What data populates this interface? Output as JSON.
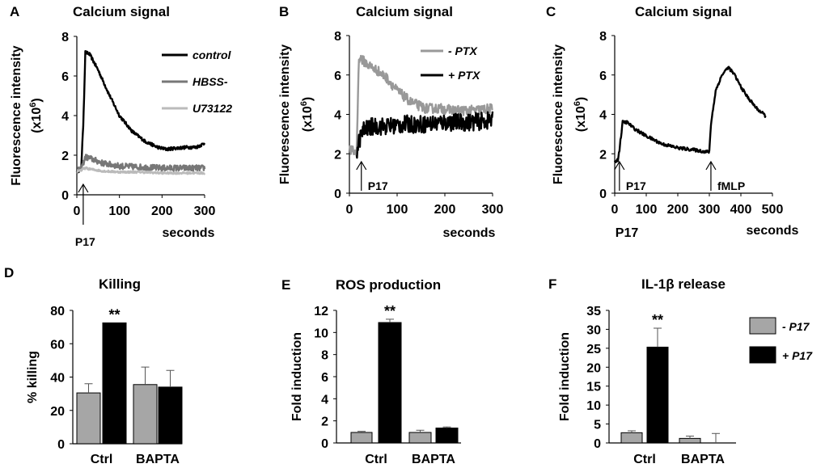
{
  "chart_data": [
    {
      "id": "A",
      "panel_label": "A",
      "type": "line",
      "title": "Calcium signal",
      "ylabel": "Fluorescence intensity",
      "ylabel2": "(x10",
      "ylabel_sup": "6",
      "ylabel_close": ")",
      "xlabel": "seconds",
      "xlim": [
        0,
        300
      ],
      "ylim": [
        0,
        8
      ],
      "xticks": [
        0,
        100,
        200,
        300
      ],
      "yticks": [
        0,
        2,
        4,
        6,
        8
      ],
      "arrow_annotation": {
        "label": "P17",
        "x": 15
      },
      "series": [
        {
          "name": "control",
          "color": "#000000",
          "noise": 0.08,
          "x": [
            0,
            10,
            15,
            20,
            30,
            50,
            75,
            100,
            130,
            160,
            190,
            210,
            230,
            260,
            280,
            300
          ],
          "y": [
            1.2,
            1.25,
            3.5,
            7.2,
            7.1,
            6.3,
            5.1,
            4.0,
            3.2,
            2.7,
            2.4,
            2.3,
            2.35,
            2.4,
            2.4,
            2.6
          ]
        },
        {
          "name": "HBSS-",
          "color": "#777777",
          "noise": 0.15,
          "x": [
            0,
            10,
            20,
            30,
            60,
            100,
            150,
            200,
            250,
            300
          ],
          "y": [
            1.2,
            1.3,
            1.9,
            1.85,
            1.6,
            1.45,
            1.4,
            1.35,
            1.35,
            1.35
          ]
        },
        {
          "name": "U73122",
          "color": "#bbbbbb",
          "noise": 0.05,
          "x": [
            0,
            10,
            20,
            30,
            60,
            100,
            150,
            200,
            250,
            300
          ],
          "y": [
            1.2,
            1.25,
            1.35,
            1.3,
            1.2,
            1.15,
            1.15,
            1.1,
            1.1,
            1.1
          ]
        }
      ]
    },
    {
      "id": "B",
      "panel_label": "B",
      "type": "line",
      "title": "Calcium signal",
      "ylabel": "Fluorescence intensity",
      "ylabel2": "(x10",
      "ylabel_sup": "6",
      "ylabel_close": ")",
      "xlabel": "seconds",
      "xlim": [
        0,
        300
      ],
      "ylim": [
        0,
        8
      ],
      "xticks": [
        0,
        100,
        200,
        300
      ],
      "yticks": [
        0,
        2,
        4,
        6,
        8
      ],
      "arrow_annotation": {
        "label": "P17",
        "x": 25
      },
      "series": [
        {
          "name": "-  PTX",
          "color": "#999999",
          "noise": 0.25,
          "x": [
            0,
            10,
            15,
            20,
            25,
            40,
            60,
            80,
            100,
            130,
            160,
            190,
            220,
            260,
            300
          ],
          "y": [
            2.2,
            2.1,
            2.0,
            6.9,
            6.8,
            6.5,
            6.2,
            5.8,
            5.2,
            4.6,
            4.3,
            4.3,
            4.2,
            4.2,
            4.3
          ]
        },
        {
          "name": "+ PTX",
          "color": "#000000",
          "noise": 0.45,
          "x": [
            15,
            20,
            25,
            30,
            50,
            80,
            120,
            160,
            200,
            250,
            300
          ],
          "y": [
            2.1,
            2.6,
            3.0,
            3.2,
            3.4,
            3.4,
            3.5,
            3.5,
            3.6,
            3.6,
            3.7
          ]
        }
      ]
    },
    {
      "id": "C",
      "panel_label": "C",
      "type": "line",
      "title": "Calcium signal",
      "ylabel": "Fluorescence intensity",
      "ylabel2": "(x10",
      "ylabel_sup": "6",
      "ylabel_close": ")",
      "xlabel": "seconds",
      "xlabel_left": "P17",
      "xlim": [
        0,
        500
      ],
      "ylim": [
        0,
        8
      ],
      "xticks": [
        0,
        100,
        200,
        300,
        400,
        500
      ],
      "yticks": [
        0,
        2,
        4,
        6,
        8
      ],
      "arrow_annotations": [
        {
          "label": "P17",
          "x": 15
        },
        {
          "label": "fMLP",
          "x": 305
        }
      ],
      "series": [
        {
          "name": "signal",
          "color": "#000000",
          "noise": 0.08,
          "x": [
            0,
            10,
            15,
            25,
            40,
            60,
            100,
            150,
            200,
            250,
            290,
            300,
            305,
            320,
            340,
            360,
            380,
            400,
            420,
            450,
            480
          ],
          "y": [
            1.6,
            1.7,
            2.2,
            3.6,
            3.6,
            3.3,
            2.9,
            2.5,
            2.3,
            2.2,
            2.1,
            2.1,
            3.5,
            5.2,
            6.0,
            6.4,
            6.0,
            5.4,
            4.9,
            4.3,
            3.9
          ]
        }
      ]
    },
    {
      "id": "D",
      "panel_label": "D",
      "type": "bar",
      "title": "Killing",
      "ylabel": "% killing",
      "categories": [
        "Ctrl",
        "BAPTA"
      ],
      "ylim": [
        0,
        80
      ],
      "yticks": [
        0,
        20,
        40,
        60,
        80
      ],
      "series": [
        {
          "name": "- P17",
          "color": "#a6a6a6",
          "values": [
            30.5,
            35.5
          ],
          "errors": [
            5.5,
            10.5
          ]
        },
        {
          "name": "+ P17",
          "color": "#000000",
          "values": [
            72.5,
            34
          ],
          "errors": [
            0,
            10
          ]
        }
      ],
      "significance": [
        {
          "label": "**",
          "category": 0,
          "series": 1
        }
      ]
    },
    {
      "id": "E",
      "panel_label": "E",
      "type": "bar",
      "title": "ROS production",
      "ylabel": "Fold  induction",
      "categories": [
        "Ctrl",
        "BAPTA"
      ],
      "ylim": [
        0,
        12
      ],
      "yticks": [
        0,
        2,
        4,
        6,
        8,
        10,
        12
      ],
      "series": [
        {
          "name": "- P17",
          "color": "#a6a6a6",
          "values": [
            0.95,
            0.95
          ],
          "errors": [
            0.1,
            0.2
          ]
        },
        {
          "name": "+ P17",
          "color": "#000000",
          "values": [
            10.9,
            1.35
          ],
          "errors": [
            0.3,
            0.1
          ]
        }
      ],
      "significance": [
        {
          "label": "**",
          "category": 0,
          "series": 1
        }
      ]
    },
    {
      "id": "F",
      "panel_label": "F",
      "type": "bar",
      "title": "IL-1β release",
      "ylabel": "Fold  induction",
      "categories": [
        "Ctrl",
        "BAPTA"
      ],
      "ylim": [
        0,
        35
      ],
      "yticks": [
        0,
        5,
        10,
        15,
        20,
        25,
        30,
        35
      ],
      "series": [
        {
          "name": "- P17",
          "color": "#a6a6a6",
          "values": [
            2.7,
            1.2
          ],
          "errors": [
            0.5,
            0.6
          ]
        },
        {
          "name": "+ P17",
          "color": "#000000",
          "values": [
            25.3,
            0
          ],
          "errors": [
            5.0,
            2.5
          ]
        }
      ],
      "significance": [
        {
          "label": "**",
          "category": 0,
          "series": 1
        }
      ]
    }
  ],
  "legend_bar": [
    {
      "name": "- P17",
      "color": "#a6a6a6"
    },
    {
      "name": "+ P17",
      "color": "#000000"
    }
  ]
}
